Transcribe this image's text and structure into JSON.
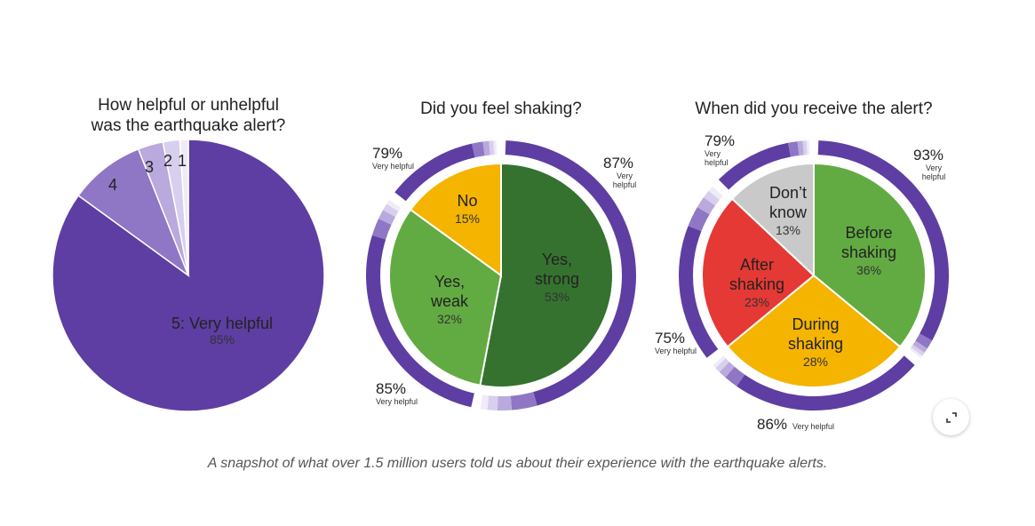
{
  "caption": "A snapshot of what over 1.5 million users told us about their experience with the earthquake alerts.",
  "expand_icon": "expand-icon",
  "colors": {
    "purple": "#5e3ea2",
    "green_dark": "#35722f",
    "green": "#62ab42",
    "yellow": "#f4b400",
    "red": "#e53935",
    "gray": "#c9c9c9"
  },
  "chart_data": [
    {
      "type": "pie",
      "title_lines": [
        "How helpful or unhelpful",
        "was the earthquake alert?"
      ],
      "slices": [
        {
          "label": "5: Very helpful",
          "value": 85,
          "pct_text": "85%",
          "color": "#5e3ea2"
        },
        {
          "label": "4",
          "value": 9,
          "color": "#8f77c5"
        },
        {
          "label": "3",
          "value": 3,
          "color": "#b9a9dc"
        },
        {
          "label": "2",
          "value": 2,
          "color": "#d8cfee"
        },
        {
          "label": "1",
          "value": 1,
          "color": "#efebf7"
        }
      ]
    },
    {
      "type": "pie",
      "title_lines": [
        "Did you feel shaking?"
      ],
      "slices": [
        {
          "label": "Yes, strong",
          "label_lines": [
            "Yes,",
            "strong"
          ],
          "value": 53,
          "pct_text": "53%",
          "color": "#35722f"
        },
        {
          "label": "Yes, weak",
          "label_lines": [
            "Yes,",
            "weak"
          ],
          "value": 32,
          "pct_text": "32%",
          "color": "#62ab42"
        },
        {
          "label": "No",
          "label_lines": [
            "No"
          ],
          "value": 15,
          "pct_text": "15%",
          "color": "#f4b400"
        }
      ],
      "outer_ring": [
        {
          "for": "Yes, strong",
          "pct_text": "87%",
          "sub_lines": [
            "Very",
            "helpful"
          ],
          "very_helpful": 87
        },
        {
          "for": "Yes, weak",
          "pct_text": "85%",
          "sub_lines": [
            "Very helpful"
          ],
          "very_helpful": 85
        },
        {
          "for": "No",
          "pct_text": "79%",
          "sub_lines": [
            "Very helpful"
          ],
          "very_helpful": 79
        }
      ]
    },
    {
      "type": "pie",
      "title_lines": [
        "When did you receive the alert?"
      ],
      "slices": [
        {
          "label": "Before shaking",
          "label_lines": [
            "Before",
            "shaking"
          ],
          "value": 36,
          "pct_text": "36%",
          "color": "#62ab42"
        },
        {
          "label": "During shaking",
          "label_lines": [
            "During",
            "shaking"
          ],
          "value": 28,
          "pct_text": "28%",
          "color": "#f4b400"
        },
        {
          "label": "After shaking",
          "label_lines": [
            "After",
            "shaking"
          ],
          "value": 23,
          "pct_text": "23%",
          "color": "#e53935"
        },
        {
          "label": "Don't know",
          "label_lines": [
            "Don’t",
            "know"
          ],
          "value": 13,
          "pct_text": "13%",
          "color": "#c9c9c9"
        }
      ],
      "outer_ring": [
        {
          "for": "Before shaking",
          "pct_text": "93%",
          "sub_lines": [
            "Very",
            "helpful"
          ],
          "very_helpful": 93
        },
        {
          "for": "During shaking",
          "pct_text": "86%",
          "sub_lines": [
            "Very helpful"
          ],
          "very_helpful": 86
        },
        {
          "for": "After shaking",
          "pct_text": "75%",
          "sub_lines": [
            "Very helpful"
          ],
          "very_helpful": 75
        },
        {
          "for": "Don't know",
          "pct_text": "79%",
          "sub_lines": [
            "Very",
            "helpful"
          ],
          "very_helpful": 79
        }
      ]
    }
  ]
}
